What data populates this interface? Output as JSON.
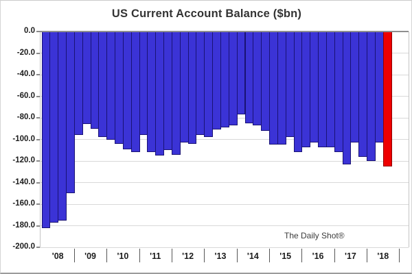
{
  "title": "US Current Account Balance ($bn)",
  "watermark": "The Daily Shot®",
  "colors": {
    "bar_fill": "#3b33d6",
    "bar_border": "#191273",
    "highlight_fill": "#ee0000",
    "highlight_border": "#8f0000",
    "gridline": "#d8d8d8",
    "zero_line": "#8f8f8f",
    "axis_text": "#1c1c1c",
    "title_text": "#333333"
  },
  "chart_data": {
    "type": "bar",
    "title": "US Current Account Balance ($bn)",
    "ylabel": "",
    "xlabel": "",
    "unit": "$bn",
    "ylim": [
      -200,
      0
    ],
    "ytick_step": 20,
    "ytick_labels": [
      "0.0",
      "-20.0",
      "-40.0",
      "-60.0",
      "-80.0",
      "-100.0",
      "-120.0",
      "-140.0",
      "-160.0",
      "-180.0",
      "-200.0"
    ],
    "grid": true,
    "legend": "none",
    "year_labels": [
      "'08",
      "'09",
      "'10",
      "'11",
      "'12",
      "'13",
      "'14",
      "'15",
      "'16",
      "'17",
      "'18"
    ],
    "quarters_per_year_slot": 4,
    "series": [
      {
        "name": "US Current Account Balance",
        "frequency": "quarterly",
        "start": "2008 Q1",
        "end": "2018 Q3",
        "values": [
          -182,
          -177,
          -175,
          -150,
          -96,
          -86,
          -90,
          -98,
          -100,
          -104,
          -109,
          -112,
          -96,
          -112,
          -115,
          -110,
          -114,
          -103,
          -104,
          -96,
          -98,
          -91,
          -89,
          -87,
          -77,
          -85,
          -87,
          -92,
          -105,
          -105,
          -98,
          -112,
          -107,
          -103,
          -107,
          -107,
          -112,
          -123,
          -103,
          -116,
          -120,
          -103,
          -125
        ],
        "highlight_last_bar": true
      }
    ]
  }
}
